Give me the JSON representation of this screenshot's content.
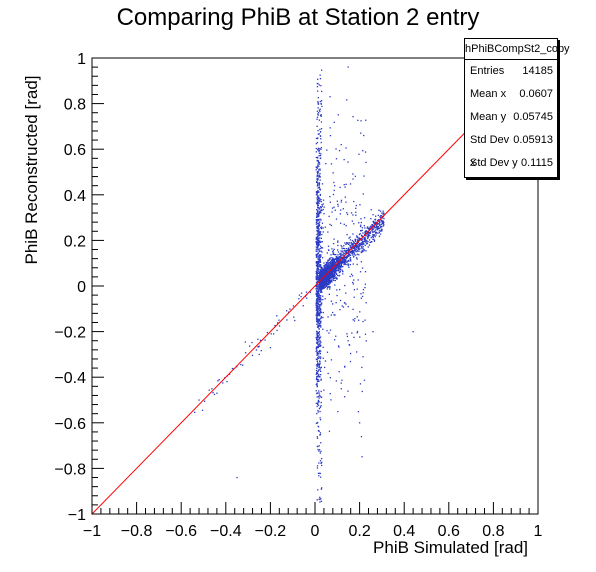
{
  "chart_data": {
    "type": "scatter",
    "title": "Comparing PhiB at Station 2 entry",
    "xlabel": "PhiB Simulated [rad]",
    "ylabel": "PhiB Reconstructed [rad]",
    "xlim": [
      -1,
      1
    ],
    "ylim": [
      -1,
      1
    ],
    "x_ticks": [
      "−1",
      "−0.8",
      "−0.6",
      "−0.4",
      "−0.2",
      "0",
      "0.2",
      "0.4",
      "0.6",
      "0.8",
      "1"
    ],
    "y_ticks": [
      "−1",
      "−0.8",
      "−0.6",
      "−0.4",
      "−0.2",
      "0",
      "0.2",
      "0.4",
      "0.6",
      "0.8",
      "1"
    ],
    "points_color": "#2b3bc4",
    "reference_line": {
      "from": [
        -1,
        -1
      ],
      "to": [
        1,
        1
      ],
      "color": "#ff0000"
    },
    "stats": {
      "name": "hPhiBCompSt2_copy",
      "rows": [
        {
          "label": "Entries",
          "value": "14185"
        },
        {
          "label": "Mean x",
          "value": "0.0607"
        },
        {
          "label": "Mean y",
          "value": "0.05745"
        },
        {
          "label": "Std Dev x",
          "value": "0.05913"
        },
        {
          "label": "Std Dev y",
          "value": "0.1115"
        }
      ]
    },
    "entries": 14185,
    "mean_x": 0.0607,
    "mean_y": 0.05745,
    "std_x": 0.05913,
    "std_y": 0.1115
  }
}
